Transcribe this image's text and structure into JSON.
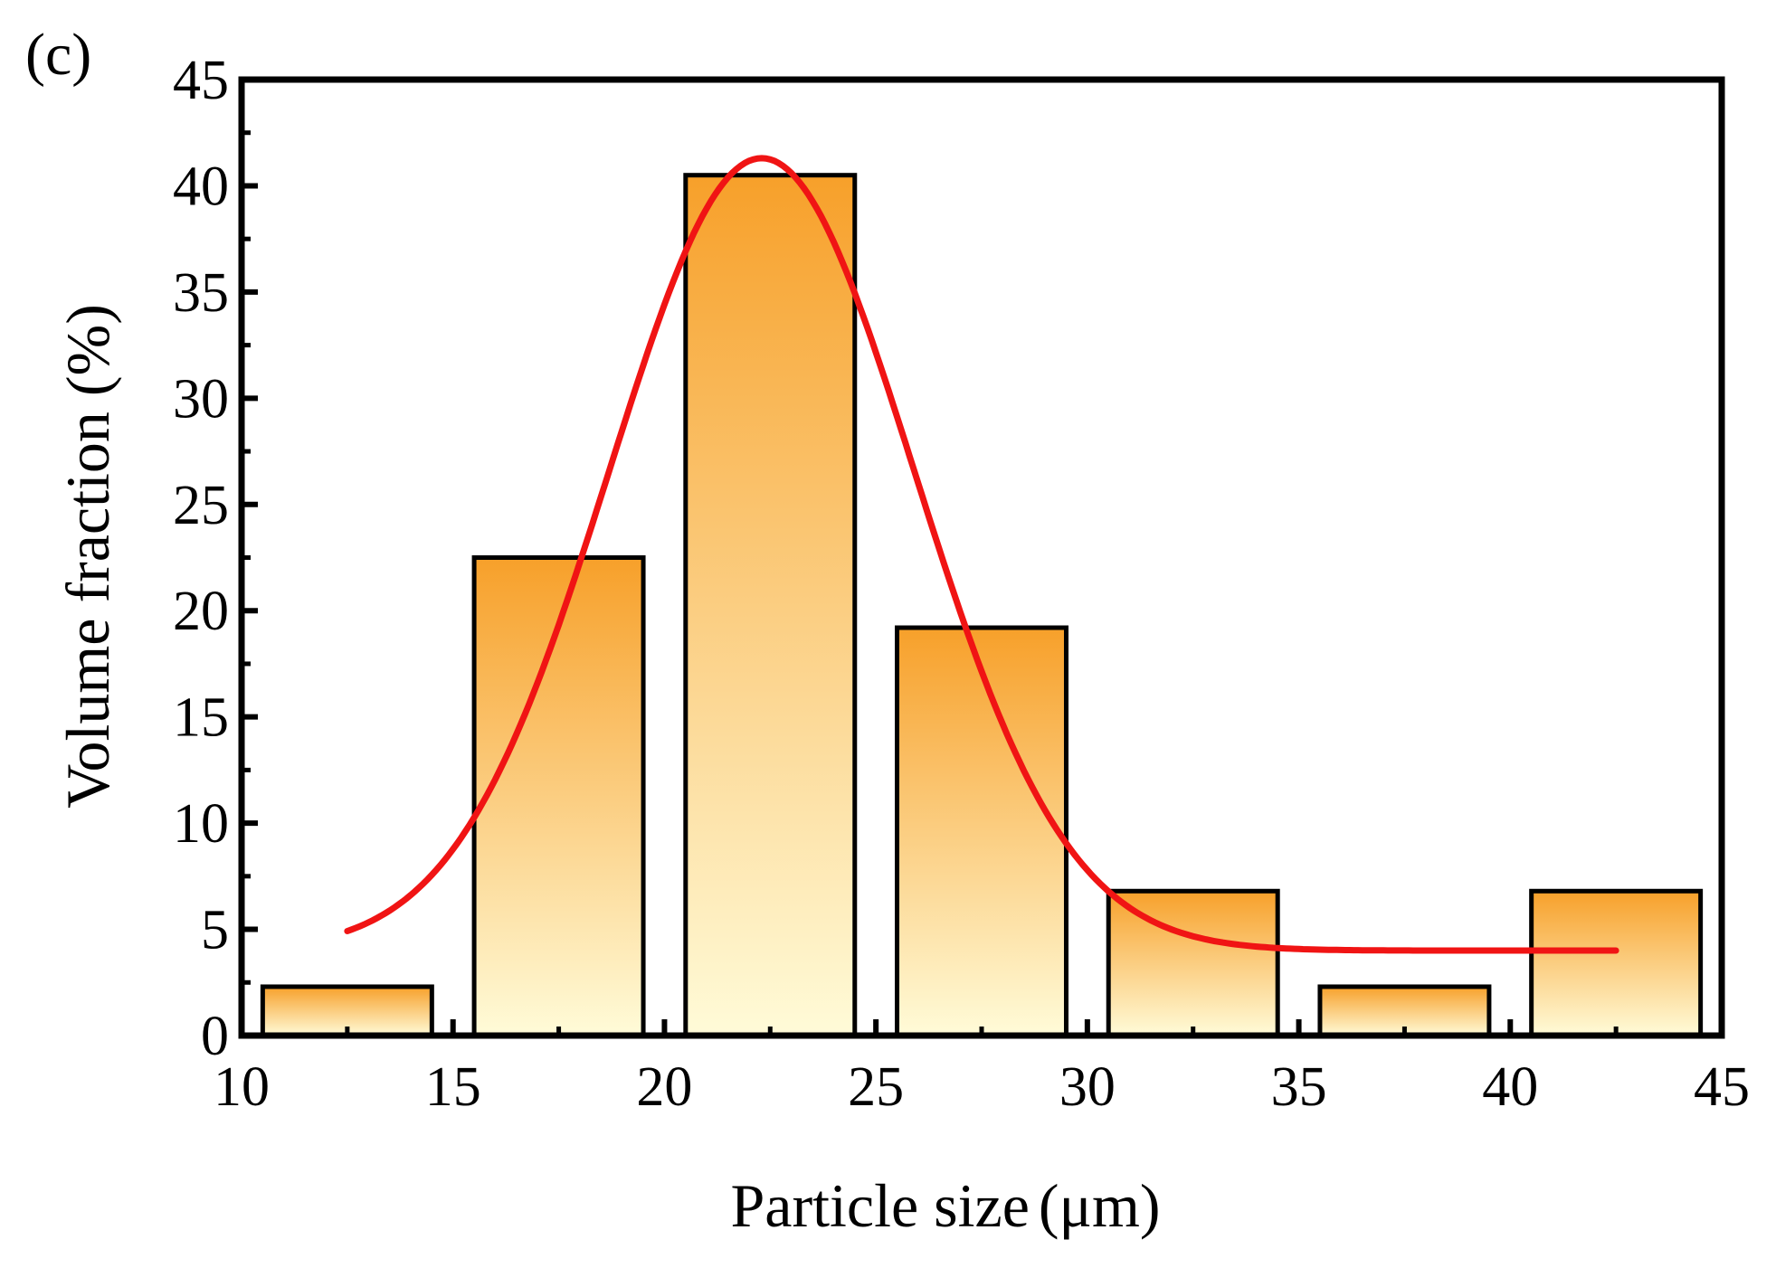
{
  "chart_data": {
    "type": "bar",
    "panel_label": "(c)",
    "xlabel": "Particle size",
    "xlabel_unit": "(μm)",
    "ylabel": "Volume fraction (%)",
    "xlim": [
      10,
      45
    ],
    "ylim": [
      0,
      45
    ],
    "x_ticks": [
      "10",
      "15",
      "20",
      "25",
      "30",
      "35",
      "40",
      "45"
    ],
    "y_ticks": [
      "0",
      "5",
      "10",
      "15",
      "20",
      "25",
      "30",
      "35",
      "40",
      "45"
    ],
    "bins": [
      {
        "start": 10.5,
        "end": 14.5,
        "value": 2.3
      },
      {
        "start": 15.5,
        "end": 19.5,
        "value": 22.5
      },
      {
        "start": 20.5,
        "end": 24.5,
        "value": 40.5
      },
      {
        "start": 25.5,
        "end": 29.5,
        "value": 19.2
      },
      {
        "start": 30.5,
        "end": 34.5,
        "value": 6.8
      },
      {
        "start": 35.5,
        "end": 39.5,
        "value": 2.3
      },
      {
        "start": 40.5,
        "end": 44.5,
        "value": 6.8
      }
    ],
    "fit_curve": {
      "type": "gaussian",
      "name": "Gaussian fit",
      "x_range": [
        12.5,
        42.5
      ],
      "baseline": 4.0,
      "amplitude": 37.3,
      "center": 22.3,
      "sigma": 3.6
    },
    "colors": {
      "bar_top": "#F7A02A",
      "bar_bottom": "#FFFBD8",
      "bar_edge": "#000000",
      "curve": "#F01414",
      "axis": "#000000"
    },
    "grid": false,
    "legend": "none"
  }
}
